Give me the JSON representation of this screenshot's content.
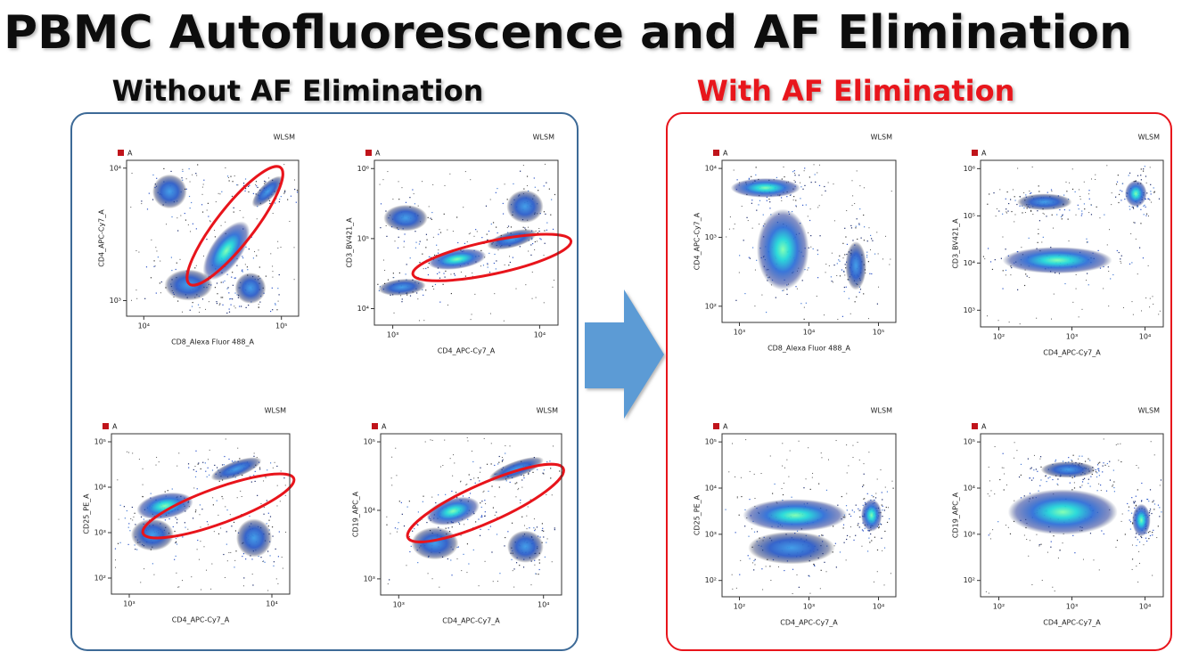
{
  "title": "PBMC Autofluorescence and AF Elimination",
  "panels": [
    {
      "heading": "Without AF Elimination",
      "plots": [
        {
          "legend": "A",
          "label": "WLSM",
          "x_label": "CD8_Alexa Fluor 488_A",
          "y_label": "CD4_APC-Cy7_A",
          "x_ticks": [
            "10⁴",
            "10⁵"
          ],
          "y_ticks": [
            "10⁴",
            "10³"
          ]
        },
        {
          "legend": "A",
          "label": "WLSM",
          "x_label": "CD4_APC-Cy7_A",
          "y_label": "CD3_BV421_A",
          "x_ticks": [
            "10³",
            "10⁴"
          ],
          "y_ticks": [
            "10⁶",
            "10⁵",
            "10⁴"
          ]
        },
        {
          "legend": "A",
          "label": "WLSM",
          "x_label": "CD4_APC-Cy7_A",
          "y_label": "CD25_PE_A",
          "x_ticks": [
            "10³",
            "10⁴"
          ],
          "y_ticks": [
            "10⁵",
            "10⁴",
            "10³",
            "10²"
          ]
        },
        {
          "legend": "A",
          "label": "WLSM",
          "x_label": "CD4_APC-Cy7_A",
          "y_label": "CD19_APC_A",
          "x_ticks": [
            "10³",
            "10⁴"
          ],
          "y_ticks": [
            "10⁵",
            "10⁴",
            "10³"
          ]
        }
      ]
    },
    {
      "heading": "With AF Elimination",
      "plots": [
        {
          "legend": "A",
          "label": "WLSM",
          "x_label": "CD8_Alexa Fluor 488_A",
          "y_label": "CD4_APC-Cy7_A",
          "x_ticks": [
            "10³",
            "10⁴",
            "10⁵"
          ],
          "y_ticks": [
            "10⁴",
            "10³",
            "10²"
          ]
        },
        {
          "legend": "A",
          "label": "WLSM",
          "x_label": "CD4_APC-Cy7_A",
          "y_label": "CD3_BV421_A",
          "x_ticks": [
            "10²",
            "10³",
            "10⁴"
          ],
          "y_ticks": [
            "10⁶",
            "10⁵",
            "10⁴",
            "10³"
          ]
        },
        {
          "legend": "A",
          "label": "WLSM",
          "x_label": "CD4_APC-Cy7_A",
          "y_label": "CD25_PE_A",
          "x_ticks": [
            "10²",
            "10³",
            "10⁴"
          ],
          "y_ticks": [
            "10⁵",
            "10⁴",
            "10³",
            "10²"
          ]
        },
        {
          "legend": "A",
          "label": "WLSM",
          "x_label": "CD4_APC-Cy7_A",
          "y_label": "CD19_APC_A",
          "x_ticks": [
            "10²",
            "10³",
            "10⁴"
          ],
          "y_ticks": [
            "10⁵",
            "10⁴",
            "10³",
            "10²"
          ]
        }
      ]
    }
  ]
}
